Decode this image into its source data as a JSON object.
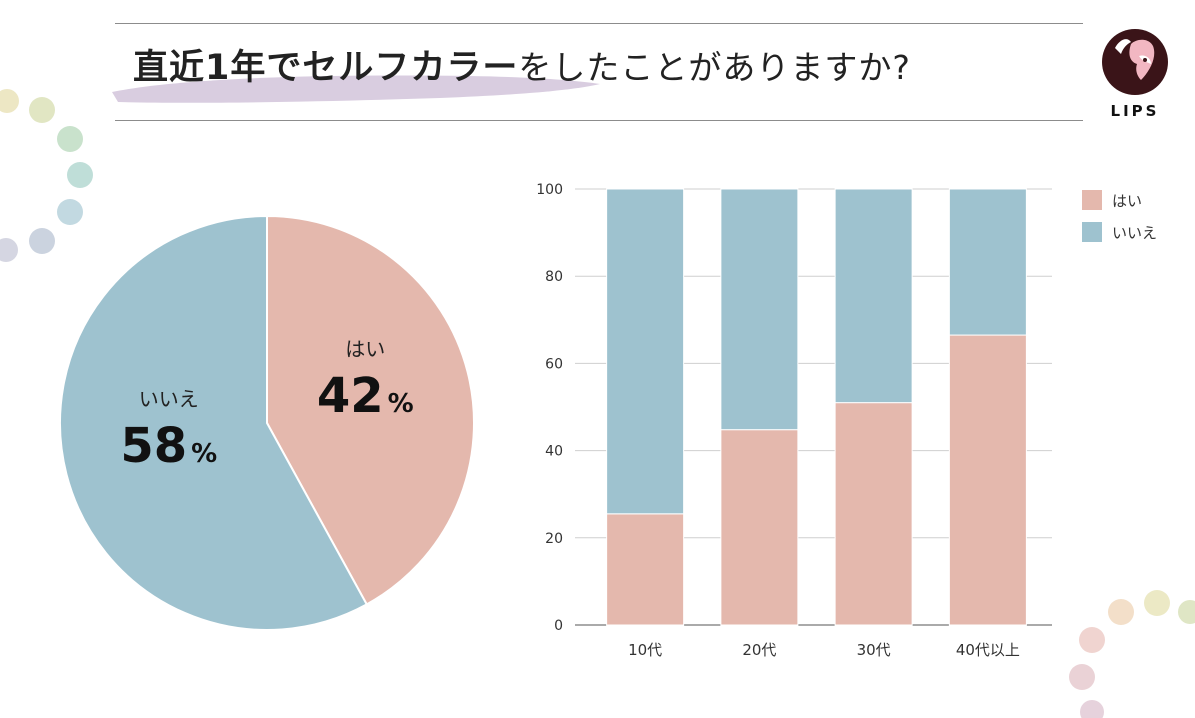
{
  "header": {
    "title_bold": "直近1年でセルフカラー",
    "title_light": "をしたことがありますか?",
    "logo_text": "LIPS"
  },
  "colors": {
    "yes": "#e4b8ad",
    "no": "#9ec2cf",
    "brush": "#d9cde0",
    "rule": "#8c8c8c"
  },
  "chart_data": [
    {
      "type": "pie",
      "title": "",
      "slices": [
        {
          "label": "はい",
          "value": 42,
          "display": "42",
          "unit": "%"
        },
        {
          "label": "いいえ",
          "value": 58,
          "display": "58",
          "unit": "%"
        }
      ]
    },
    {
      "type": "bar",
      "stacked": true,
      "title": "",
      "xlabel": "",
      "ylabel": "",
      "ylim": [
        0,
        100
      ],
      "yticks": [
        "0",
        "20",
        "40",
        "60",
        "80",
        "100"
      ],
      "grid": true,
      "legend": "top-right",
      "categories": [
        "10代",
        "20代",
        "30代",
        "40代以上"
      ],
      "series": [
        {
          "name": "はい",
          "values": [
            25.5,
            44.8,
            51,
            66.5
          ]
        },
        {
          "name": "いいえ",
          "values": [
            74.5,
            55.2,
            49,
            33.5
          ]
        }
      ]
    }
  ]
}
